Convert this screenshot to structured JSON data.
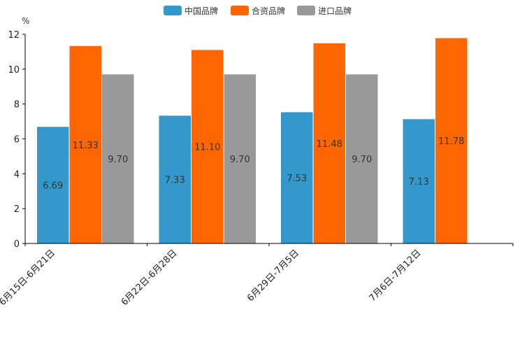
{
  "chart_data": {
    "type": "bar",
    "unit": "%",
    "categories": [
      "6月15日-6月21日",
      "6月22日-6月28日",
      "6月29日-7月5日",
      "7月6日-7月12日"
    ],
    "series": [
      {
        "name": "中国品牌",
        "color": "#3399CC",
        "values": [
          6.69,
          7.33,
          7.53,
          7.13
        ],
        "labels": [
          "6.69",
          "7.33",
          "7.53",
          "7.13"
        ]
      },
      {
        "name": "合资品牌",
        "color": "#FF6600",
        "values": [
          11.33,
          11.1,
          11.48,
          11.78
        ],
        "labels": [
          "11.33",
          "11.10",
          "11.48",
          "11.78"
        ]
      },
      {
        "name": "进口品牌",
        "color": "#999999",
        "values": [
          9.7,
          9.7,
          9.7,
          null
        ],
        "labels": [
          "9.70",
          "9.70",
          "9.70",
          null
        ]
      }
    ],
    "ylim": [
      0,
      12
    ],
    "yticks": [
      "0",
      "2",
      "4",
      "6",
      "8",
      "10",
      "12"
    ],
    "legend_position": "top-center",
    "grid": false
  }
}
